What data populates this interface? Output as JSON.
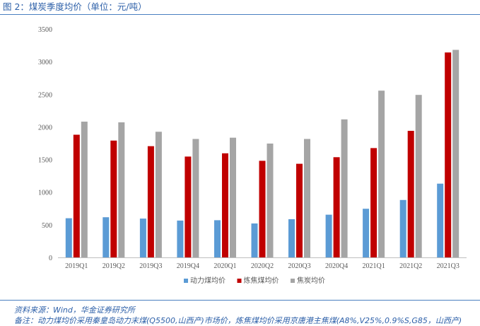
{
  "figure": {
    "title": "图 2：煤炭季度均价（单位：元/吨）",
    "source": "资料来源：Wind，华金证券研究所",
    "note": "备注：动力煤均价采用秦皇岛动力末煤(Q5500,山西产)市场价，炼焦煤均价采用京唐港主焦煤(A8%,V25%,0.9%S,G85，山西产)"
  },
  "colors": {
    "dynamic_coal": "#5b9bd5",
    "coking_coal": "#c00000",
    "coke": "#a5a5a5"
  },
  "chart_data": {
    "type": "bar",
    "title": "",
    "xlabel": "",
    "ylabel": "",
    "ylim": [
      0,
      3500
    ],
    "yticks": [
      0,
      500,
      1000,
      1500,
      2000,
      2500,
      3000,
      3500
    ],
    "grid": false,
    "legend_position": "bottom",
    "categories": [
      "2019Q1",
      "2019Q2",
      "2019Q3",
      "2019Q4",
      "2020Q1",
      "2020Q2",
      "2020Q3",
      "2020Q4",
      "2021Q1",
      "2021Q2",
      "2021Q3"
    ],
    "series": [
      {
        "name": "动力煤均价",
        "color": "#5b9bd5",
        "values": [
          600,
          615,
          595,
          565,
          570,
          520,
          585,
          655,
          745,
          880,
          1130
        ]
      },
      {
        "name": "炼焦煤均价",
        "color": "#c00000",
        "values": [
          1880,
          1790,
          1705,
          1545,
          1595,
          1480,
          1435,
          1535,
          1675,
          1940,
          3140
        ]
      },
      {
        "name": "焦炭均价",
        "color": "#a5a5a5",
        "values": [
          2080,
          2070,
          1925,
          1815,
          1835,
          1745,
          1815,
          2115,
          2555,
          2490,
          3180
        ]
      }
    ]
  }
}
